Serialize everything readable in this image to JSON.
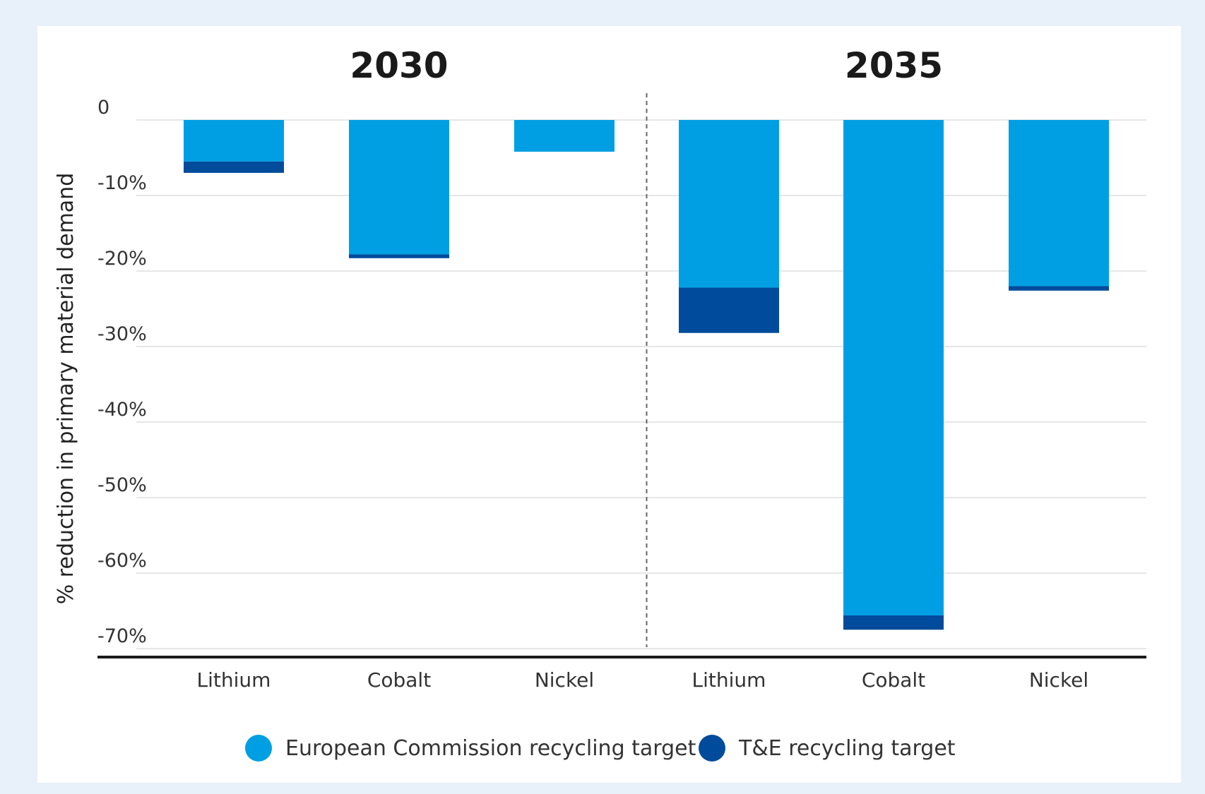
{
  "chart_data": {
    "type": "bar",
    "stacked": true,
    "ylabel": "% reduction in primary material demand",
    "y_ticks": [
      "0",
      "-10%",
      "-20%",
      "-30%",
      "-40%",
      "-50%",
      "-60%",
      "-70%"
    ],
    "ylim": [
      -70,
      0
    ],
    "groups": [
      {
        "title": "2030",
        "categories": [
          "Lithium",
          "Cobalt",
          "Nickel"
        ]
      },
      {
        "title": "2035",
        "categories": [
          "Lithium",
          "Cobalt",
          "Nickel"
        ]
      }
    ],
    "categories": [
      "Lithium",
      "Cobalt",
      "Nickel",
      "Lithium",
      "Cobalt",
      "Nickel"
    ],
    "series": [
      {
        "name": "European Commission recycling target",
        "color": "#009fe3",
        "values": [
          -5.5,
          -17.8,
          -4.2,
          -22.2,
          -65.6,
          -22.0
        ]
      },
      {
        "name": "T&E recycling target",
        "color": "#004b9b",
        "values": [
          -1.5,
          -0.5,
          0,
          -6.0,
          -1.9,
          -0.6
        ]
      }
    ],
    "legend_position": "bottom"
  }
}
